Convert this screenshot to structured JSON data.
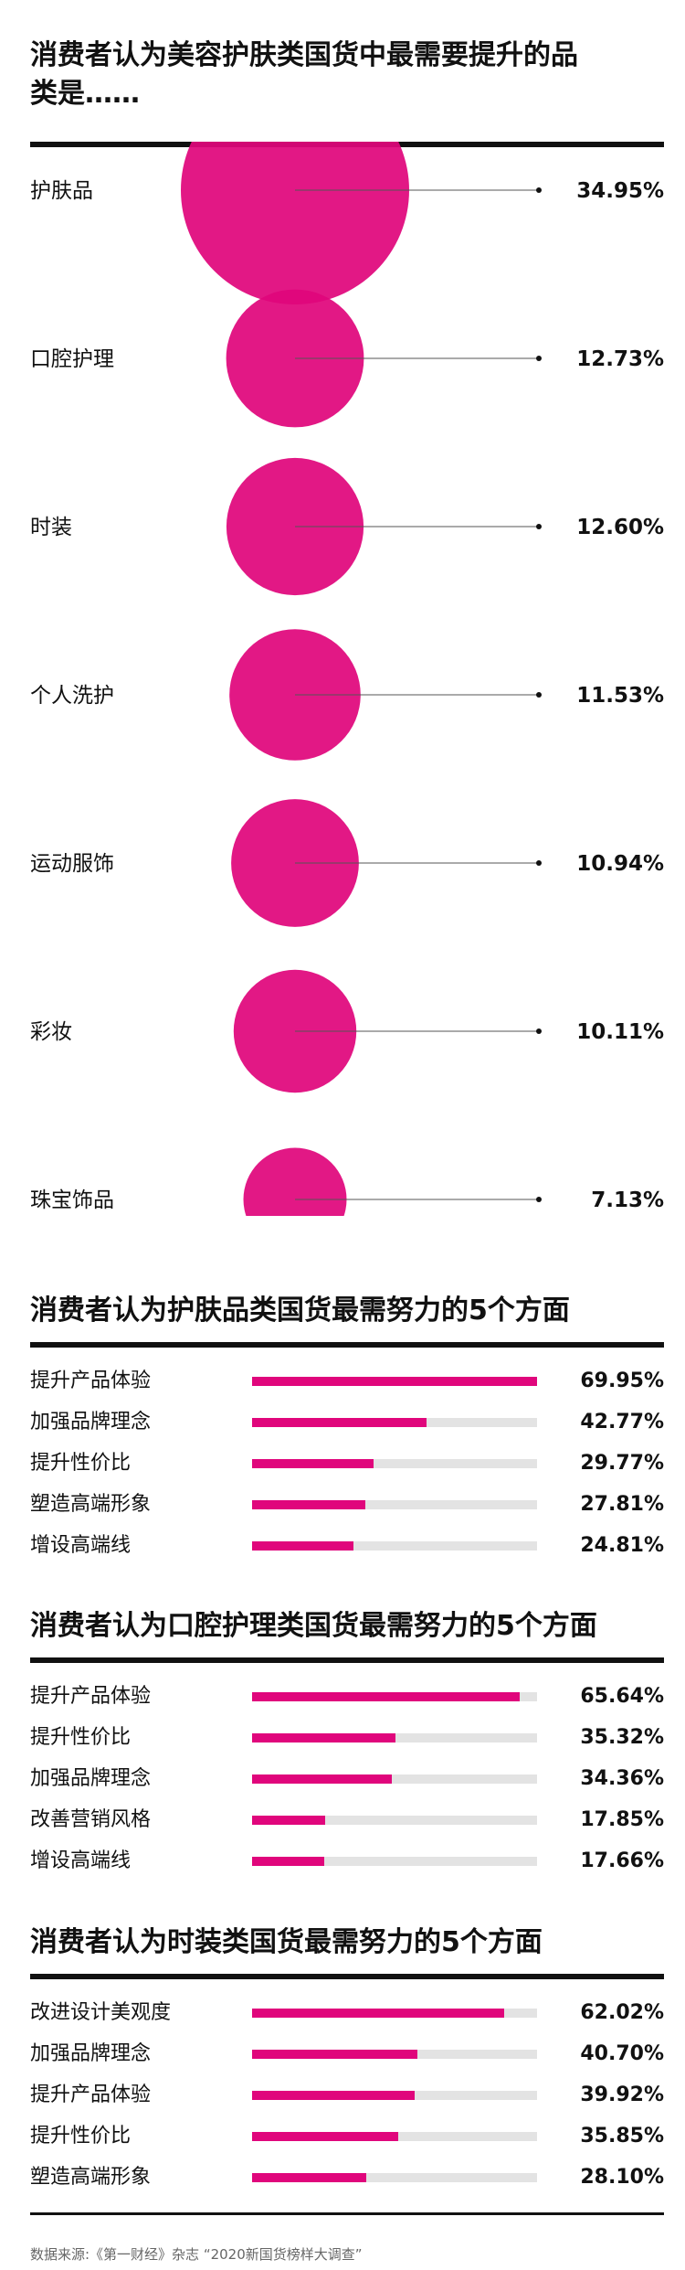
{
  "colors": {
    "accent": "#e0067c",
    "track": "#e3e3e3",
    "text": "#111111",
    "line": "#333333"
  },
  "footer": "数据来源:《第一财经》杂志 “2020新国货榜样大调查”",
  "chart_data": [
    {
      "type": "bubble",
      "title": "消费者认为美容护肤类国货中最需要提升的品类是……",
      "categories": [
        "护肤品",
        "口腔护理",
        "时装",
        "个人洗护",
        "运动服饰",
        "彩妆",
        "珠宝饰品"
      ],
      "values": [
        34.95,
        12.73,
        12.6,
        11.53,
        10.94,
        10.11,
        7.13
      ],
      "value_labels": [
        "34.95%",
        "12.73%",
        "12.60%",
        "11.53%",
        "10.94%",
        "10.11%",
        "7.13%"
      ],
      "unit": "%"
    },
    {
      "type": "bar",
      "title": "消费者认为护肤品类国货最需努力的5个方面",
      "categories": [
        "提升产品体验",
        "加强品牌理念",
        "提升性价比",
        "塑造高端形象",
        "增设高端线"
      ],
      "values": [
        69.95,
        42.77,
        29.77,
        27.81,
        24.81
      ],
      "value_labels": [
        "69.95%",
        "42.77%",
        "29.77%",
        "27.81%",
        "24.81%"
      ],
      "unit": "%"
    },
    {
      "type": "bar",
      "title": "消费者认为口腔护理类国货最需努力的5个方面",
      "categories": [
        "提升产品体验",
        "提升性价比",
        "加强品牌理念",
        "改善营销风格",
        "增设高端线"
      ],
      "values": [
        65.64,
        35.32,
        34.36,
        17.85,
        17.66
      ],
      "value_labels": [
        "65.64%",
        "35.32%",
        "34.36%",
        "17.85%",
        "17.66%"
      ],
      "unit": "%"
    },
    {
      "type": "bar",
      "title": "消费者认为时装类国货最需努力的5个方面",
      "categories": [
        "改进设计美观度",
        "加强品牌理念",
        "提升产品体验",
        "提升性价比",
        "塑造高端形象"
      ],
      "values": [
        62.02,
        40.7,
        39.92,
        35.85,
        28.1
      ],
      "value_labels": [
        "62.02%",
        "40.70%",
        "39.92%",
        "35.85%",
        "28.10%"
      ],
      "unit": "%"
    }
  ]
}
